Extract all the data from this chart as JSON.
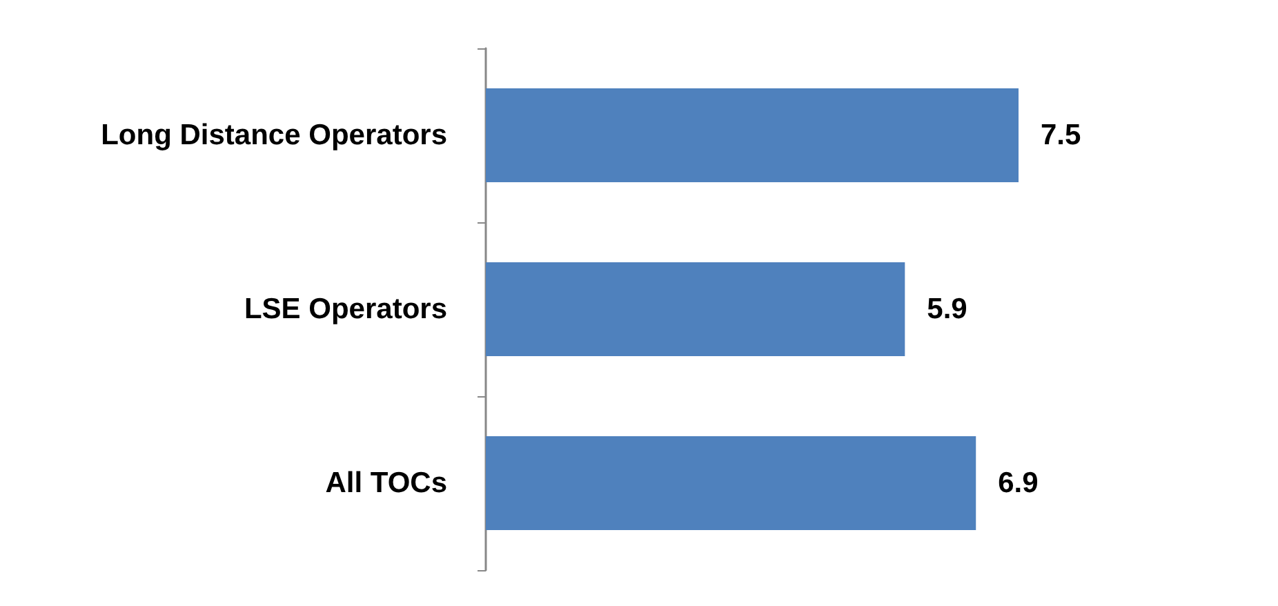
{
  "chart_data": {
    "type": "bar",
    "orientation": "horizontal",
    "categories": [
      "Long Distance Operators",
      "LSE Operators",
      "All TOCs"
    ],
    "values": [
      7.5,
      5.9,
      6.9
    ],
    "color": "#4f81bd",
    "data_labels": true
  }
}
